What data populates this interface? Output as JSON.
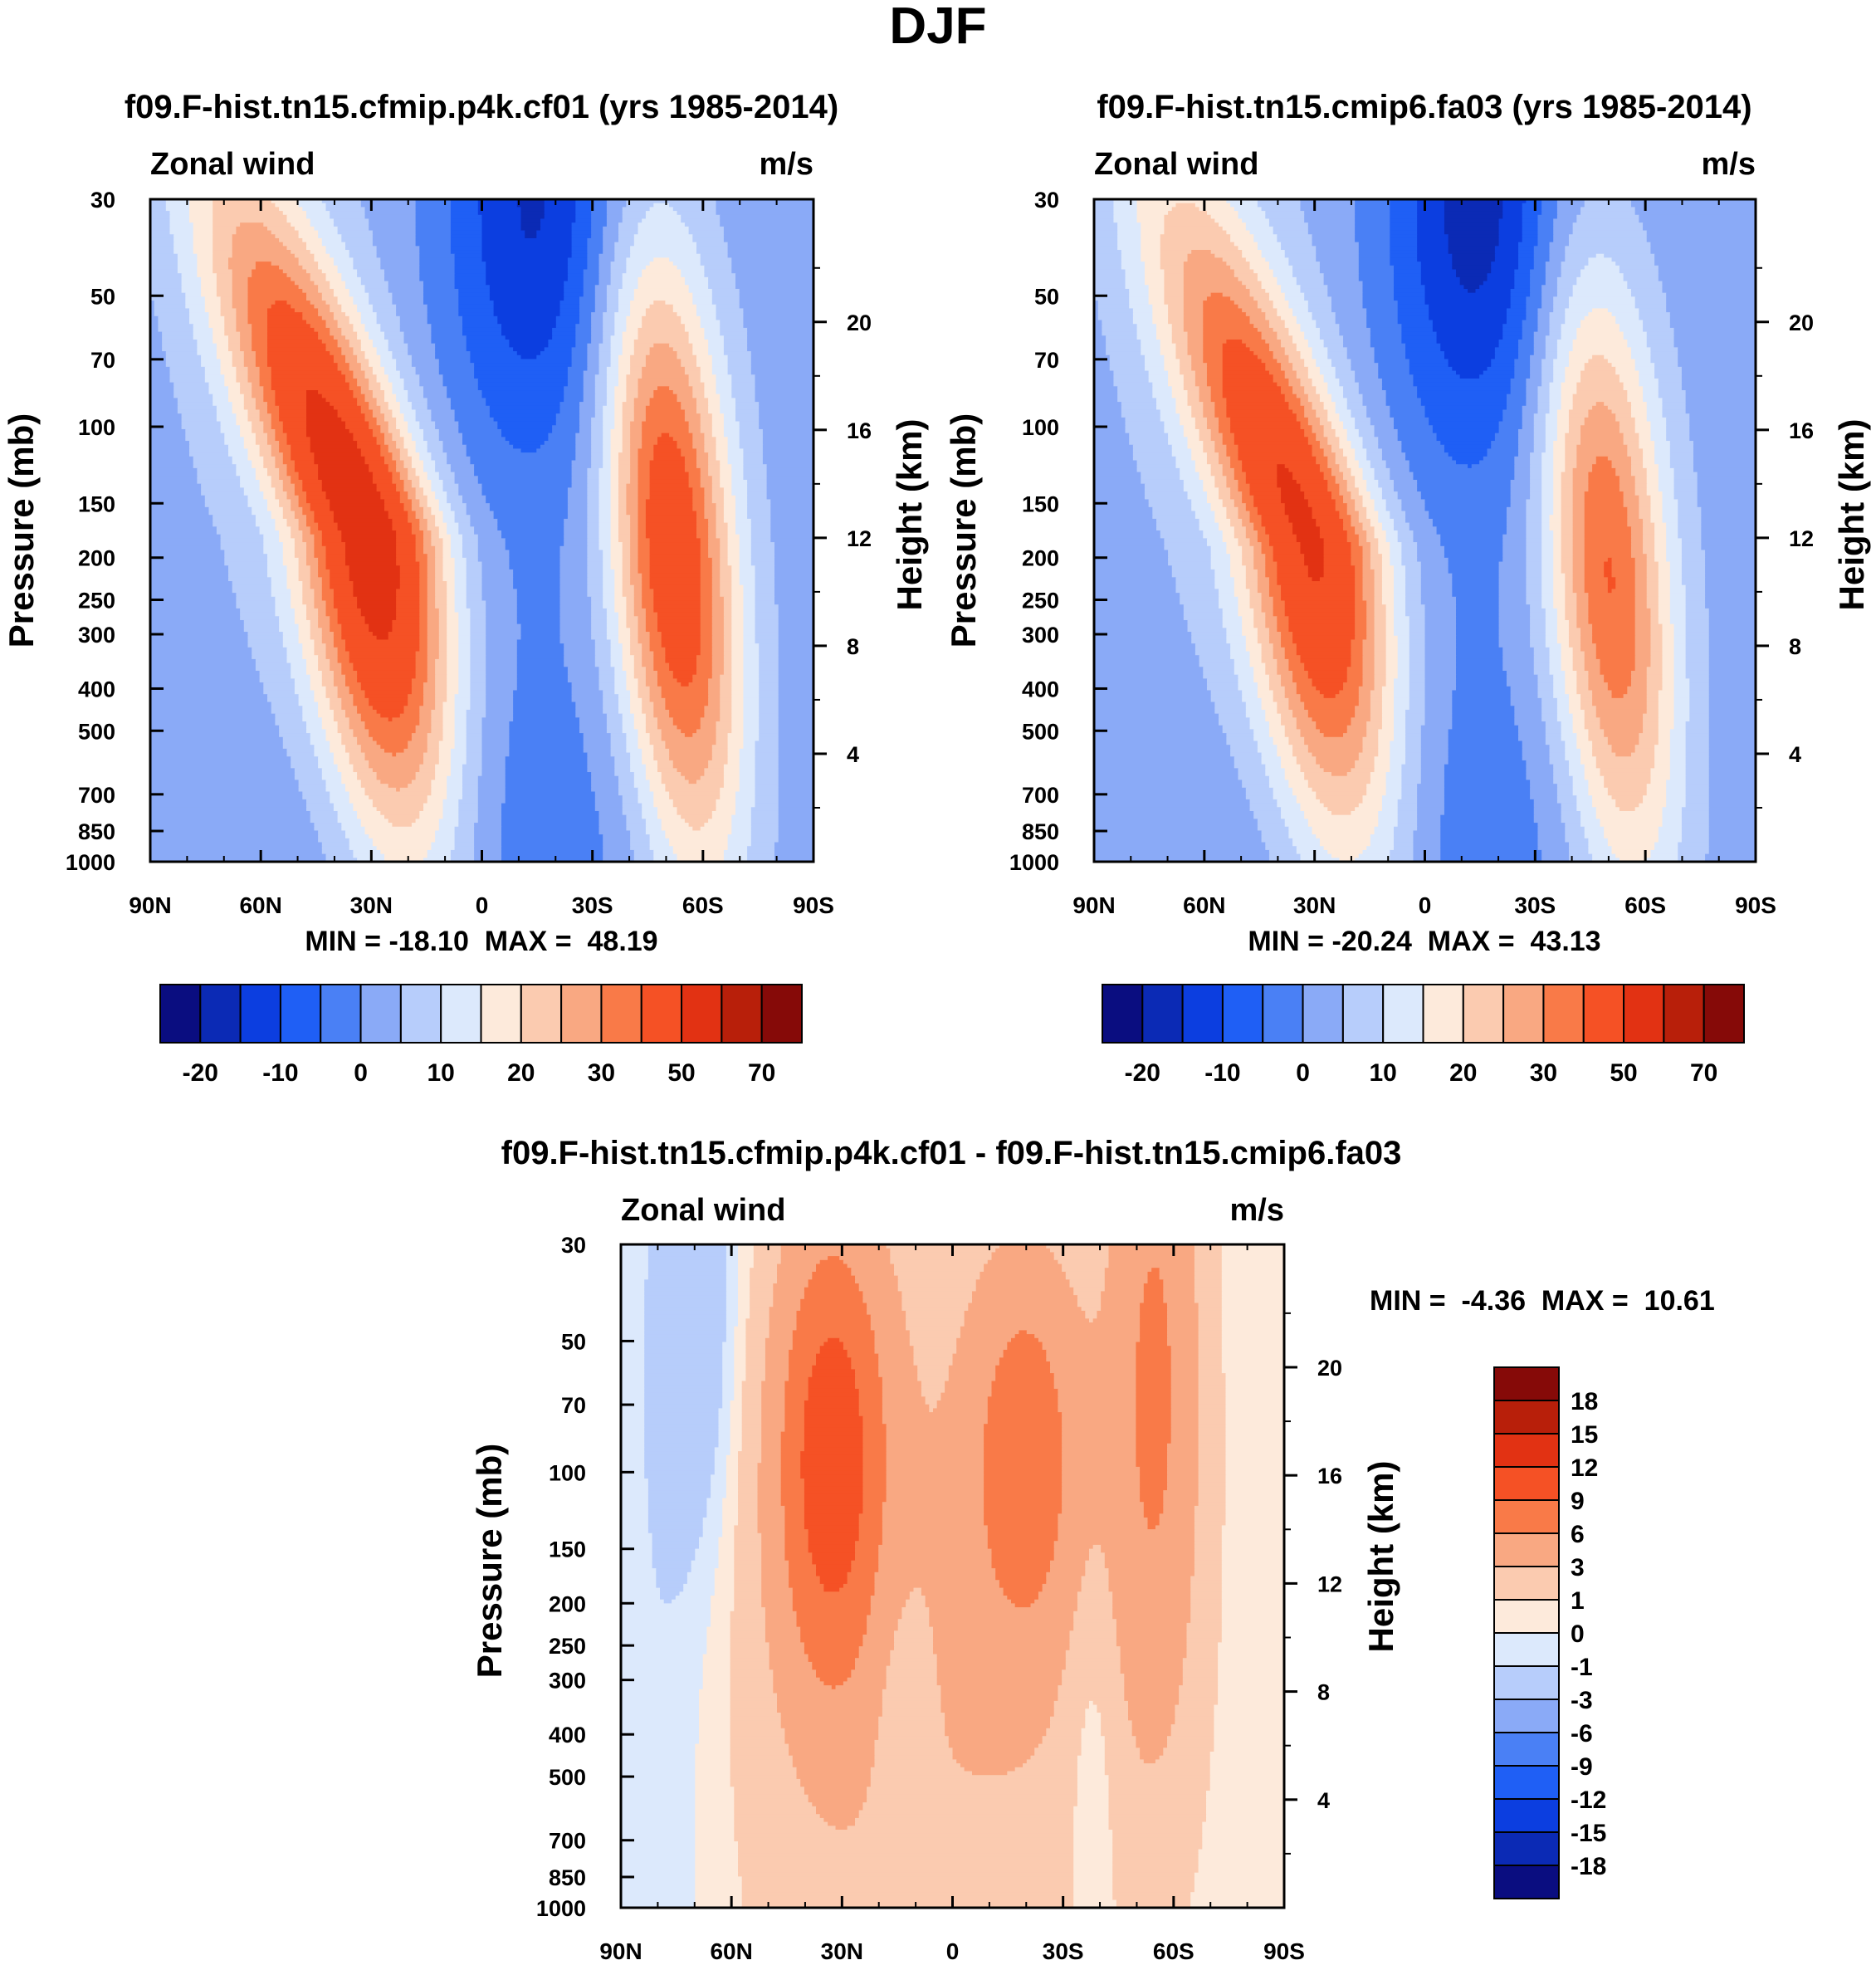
{
  "figure_title": "DJF",
  "colors": {
    "full_levels": [
      "#0a0d80",
      "#0b2ab5",
      "#0c3ee0",
      "#1f5ff5",
      "#4a80f5",
      "#8aaaf7",
      "#b7cdfb",
      "#dce9fc",
      "#fdeadb",
      "#fbcbb0",
      "#f9a882",
      "#f97a48",
      "#f55125",
      "#e23213",
      "#b81f0a",
      "#860a08"
    ],
    "diff_levels": [
      "#0a0d80",
      "#0b2ab5",
      "#0c3ee0",
      "#1f5ff5",
      "#4a80f5",
      "#8aaaf7",
      "#b7cdfb",
      "#dce9fc",
      "#fdeadb",
      "#fbcbb0",
      "#f9a882",
      "#f97a48",
      "#f55125",
      "#e23213",
      "#b81f0a",
      "#860a08"
    ]
  },
  "chart_data": [
    {
      "type": "heatmap",
      "title": "f09.F-hist.tn15.cfmip.p4k.cf01 (yrs 1985-2014)",
      "left_string": "Zonal wind",
      "right_string": "m/s",
      "ylabel": "Pressure (mb)",
      "ylabel_right": "Height (km)",
      "x_ticks": [
        "90N",
        "60N",
        "30N",
        "0",
        "30S",
        "60S",
        "90S"
      ],
      "y_ticks": [
        "30",
        "50",
        "70",
        "100",
        "150",
        "200",
        "250",
        "300",
        "400",
        "500",
        "700",
        "850",
        "1000"
      ],
      "y2_ticks": [
        "20",
        "16",
        "12",
        "8",
        "4"
      ],
      "stats": "MIN = -18.10  MAX =  48.19",
      "min": -18.1,
      "max": 48.19,
      "jets": [
        {
          "lat": 30,
          "p": 180,
          "speed": 48
        },
        {
          "lat": -52,
          "p": 200,
          "speed": 40
        },
        {
          "lat": -15,
          "p": 30,
          "speed": -18
        }
      ],
      "colorbar_labels": [
        "-20",
        "-10",
        "0",
        "10",
        "20",
        "30",
        "50",
        "70"
      ]
    },
    {
      "type": "heatmap",
      "title": "f09.F-hist.tn15.cmip6.fa03 (yrs 1985-2014)",
      "left_string": "Zonal wind",
      "right_string": "m/s",
      "ylabel": "Pressure (mb)",
      "ylabel_right": "Height (km)",
      "x_ticks": [
        "90N",
        "60N",
        "30N",
        "0",
        "30S",
        "60S",
        "90S"
      ],
      "y_ticks": [
        "30",
        "50",
        "70",
        "100",
        "150",
        "200",
        "250",
        "300",
        "400",
        "500",
        "700",
        "850",
        "1000"
      ],
      "y2_ticks": [
        "20",
        "16",
        "12",
        "8",
        "4"
      ],
      "stats": "MIN = -20.24  MAX =  43.13",
      "min": -20.24,
      "max": 43.13,
      "jets": [
        {
          "lat": 30,
          "p": 190,
          "speed": 43
        },
        {
          "lat": -50,
          "p": 220,
          "speed": 34
        },
        {
          "lat": -15,
          "p": 30,
          "speed": -20
        }
      ],
      "colorbar_labels": [
        "-20",
        "-10",
        "0",
        "10",
        "20",
        "30",
        "50",
        "70"
      ]
    },
    {
      "type": "heatmap",
      "title": "f09.F-hist.tn15.cfmip.p4k.cf01 - f09.F-hist.tn15.cmip6.fa03",
      "left_string": "Zonal wind",
      "right_string": "m/s",
      "ylabel": "Pressure (mb)",
      "ylabel_right": "Height (km)",
      "x_ticks": [
        "90N",
        "60N",
        "30N",
        "0",
        "30S",
        "60S",
        "90S"
      ],
      "y_ticks": [
        "30",
        "50",
        "70",
        "100",
        "150",
        "200",
        "250",
        "300",
        "400",
        "500",
        "700",
        "850",
        "1000"
      ],
      "y2_ticks": [
        "20",
        "16",
        "12",
        "8",
        "4"
      ],
      "stats": "MIN =  -4.36  MAX =  10.61",
      "min": -4.36,
      "max": 10.61,
      "colorbar_labels": [
        "18",
        "15",
        "12",
        "9",
        "6",
        "3",
        "1",
        "0",
        "-1",
        "-3",
        "-6",
        "-9",
        "-12",
        "-15",
        "-18"
      ]
    }
  ]
}
